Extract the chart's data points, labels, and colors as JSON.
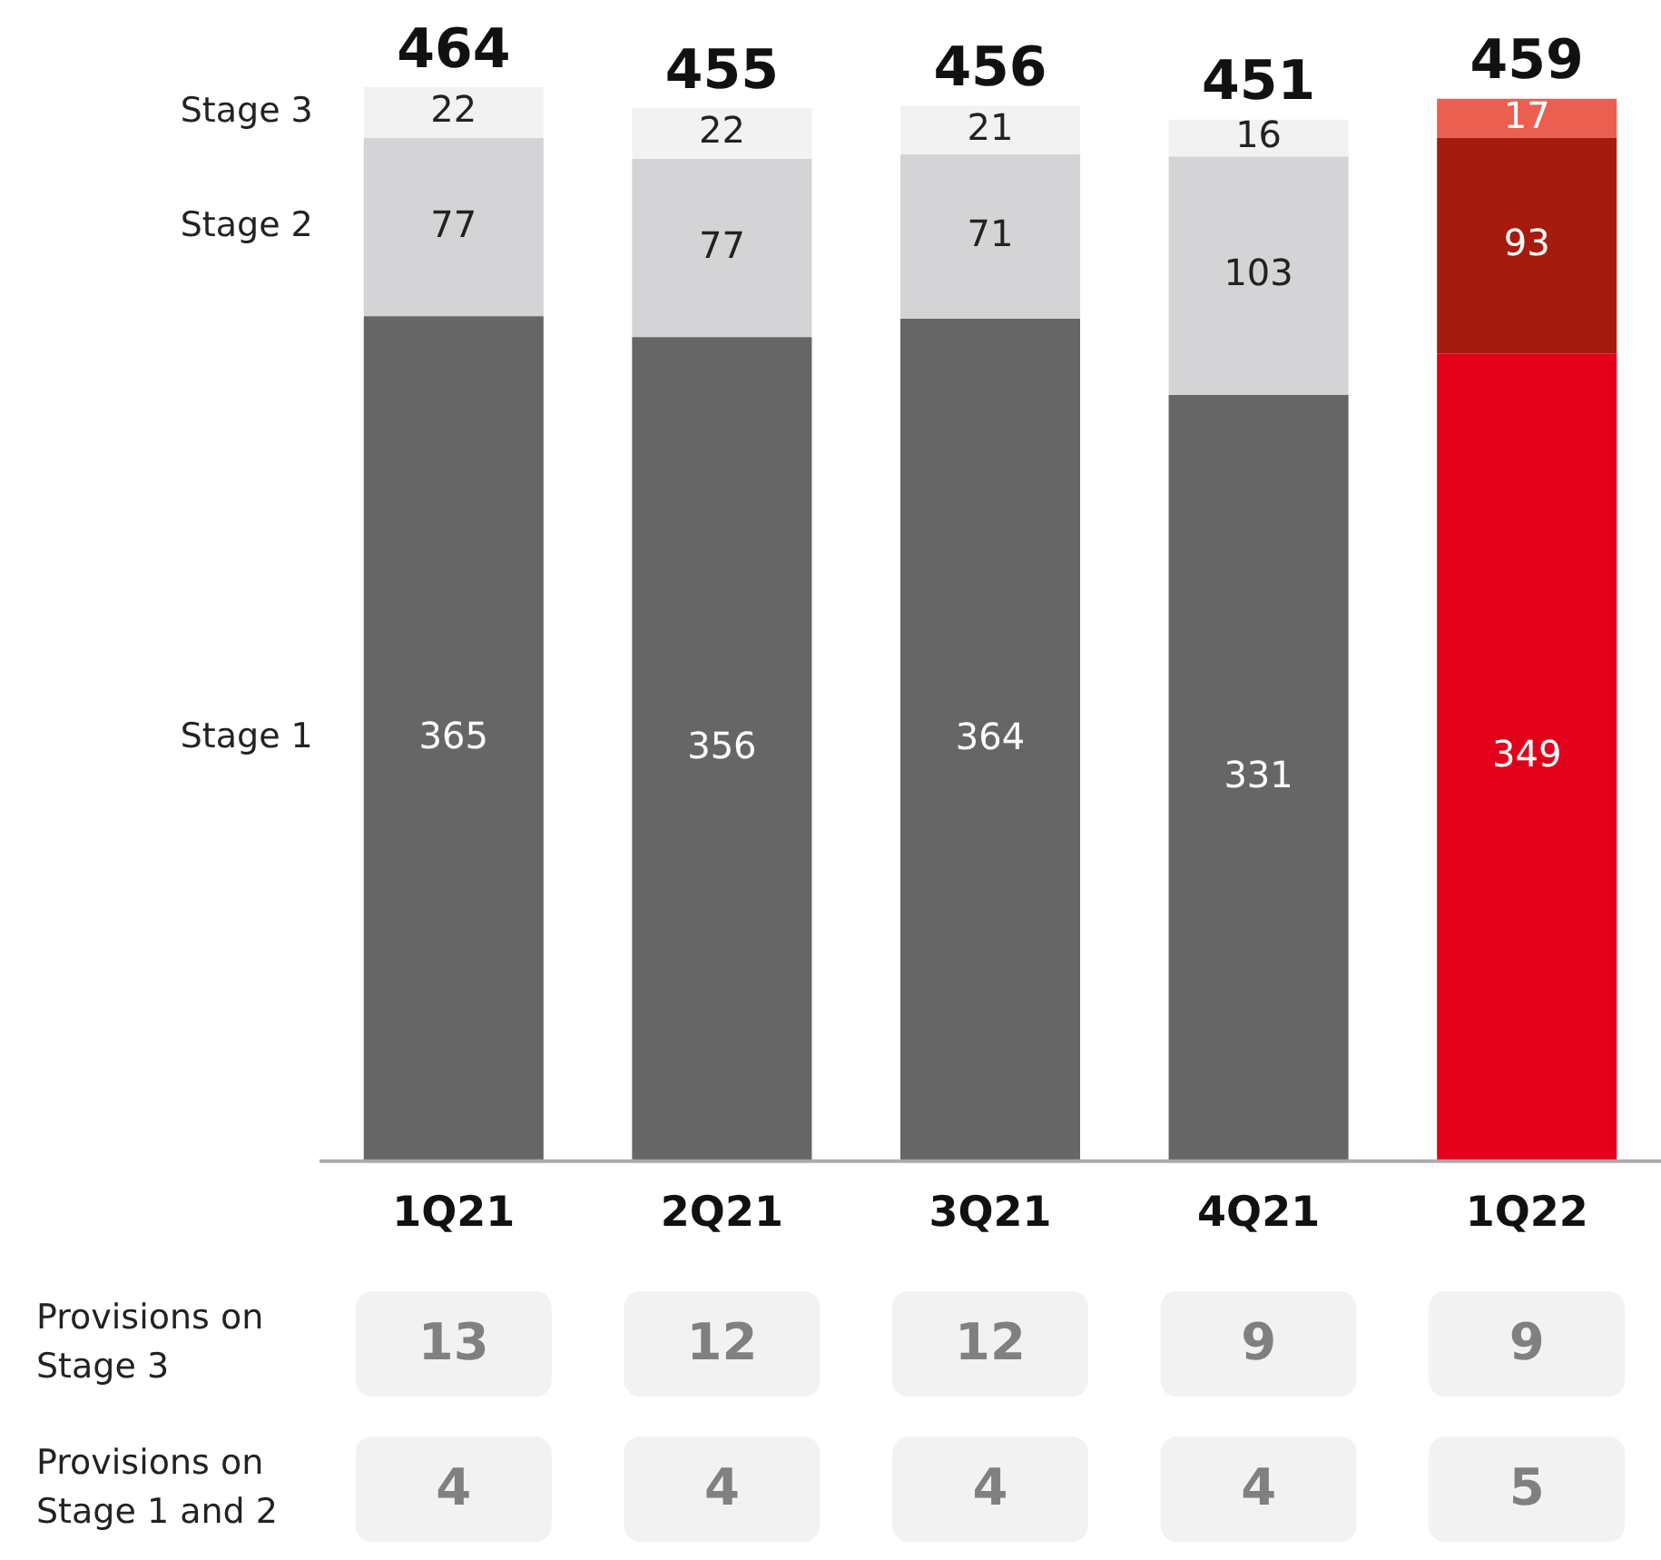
{
  "chart_data": {
    "type": "bar",
    "stacked": true,
    "data_labels": true,
    "tick_labels": "x",
    "categories": [
      "1Q21",
      "2Q21",
      "3Q21",
      "4Q21",
      "1Q22"
    ],
    "series": [
      {
        "name": "Stage 1",
        "colors": [
          "#666666",
          "#666666",
          "#666666",
          "#666666",
          "#e2001a"
        ],
        "values": [
          365,
          356,
          364,
          331,
          349
        ]
      },
      {
        "name": "Stage 2",
        "colors": [
          "#d4d4d6",
          "#d4d4d6",
          "#d4d4d6",
          "#d4d4d6",
          "#a51b0e"
        ],
        "values": [
          77,
          77,
          71,
          103,
          93
        ]
      },
      {
        "name": "Stage 3",
        "colors": [
          "#f2f2f2",
          "#f2f2f2",
          "#f2f2f2",
          "#f2f2f2",
          "#ea5f50"
        ],
        "values": [
          22,
          22,
          21,
          16,
          17
        ]
      }
    ],
    "totals": [
      "464",
      "455",
      "456",
      "451",
      "459"
    ],
    "annotations": [
      "Provisions on\nStage 3",
      "13",
      "12",
      "12",
      "9",
      "9",
      "Provisions on\nStage 1 and 2",
      "4",
      "4",
      "4",
      "4",
      "5"
    ]
  }
}
